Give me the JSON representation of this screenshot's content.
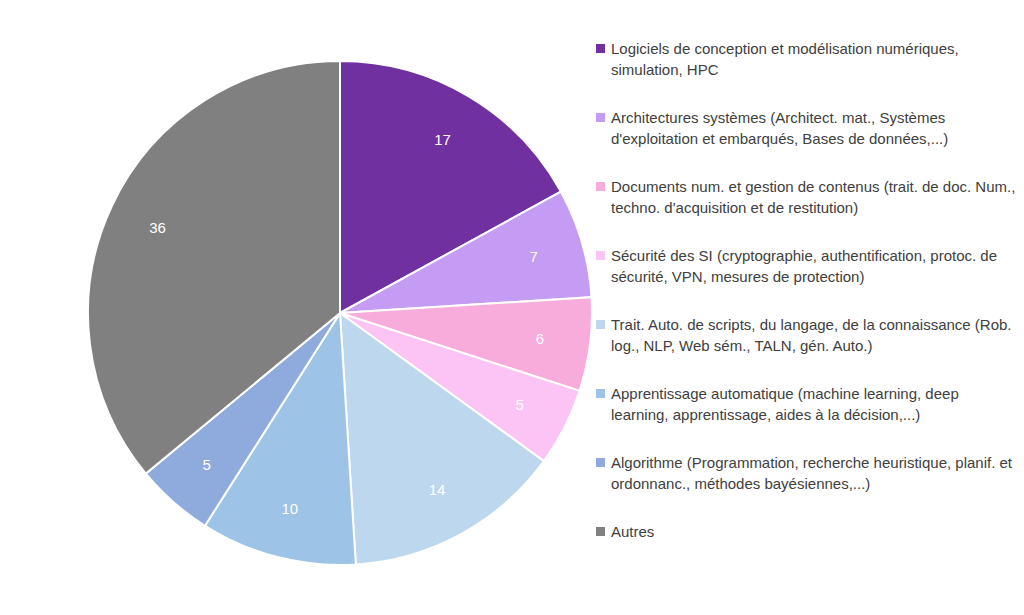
{
  "chart_data": {
    "type": "pie",
    "categories": [
      "Logiciels de conception et modélisation numériques, simulation, HPC",
      "Architectures systèmes (Architect. mat., Systèmes d'exploitation et embarqués, Bases de données,...)",
      "Documents num. et gestion de contenus (trait. de doc. Num., techno. d'acquisition et de restitution)",
      "Sécurité des SI (cryptographie, authentification, protoc. de sécurité, VPN, mesures de protection)",
      "Trait. Auto. de scripts, du langage, de la connaissance (Rob. log., NLP, Web sém., TALN, gén. Auto.)",
      "Apprentissage automatique (machine learning, deep learning, apprentissage, aides à la décision,...)",
      "Algorithme (Programmation, recherche heuristique, planif. et ordonnanc., méthodes bayésiennes,...)",
      "Autres"
    ],
    "values": [
      17,
      7,
      6,
      5,
      14,
      10,
      5,
      36
    ],
    "colors": [
      "#7030a0",
      "#c59cf4",
      "#f8acdc",
      "#fcc4f4",
      "#bdd7ee",
      "#9dc3e6",
      "#8faadc",
      "#808080"
    ],
    "data_labels": true,
    "legend": "right"
  }
}
